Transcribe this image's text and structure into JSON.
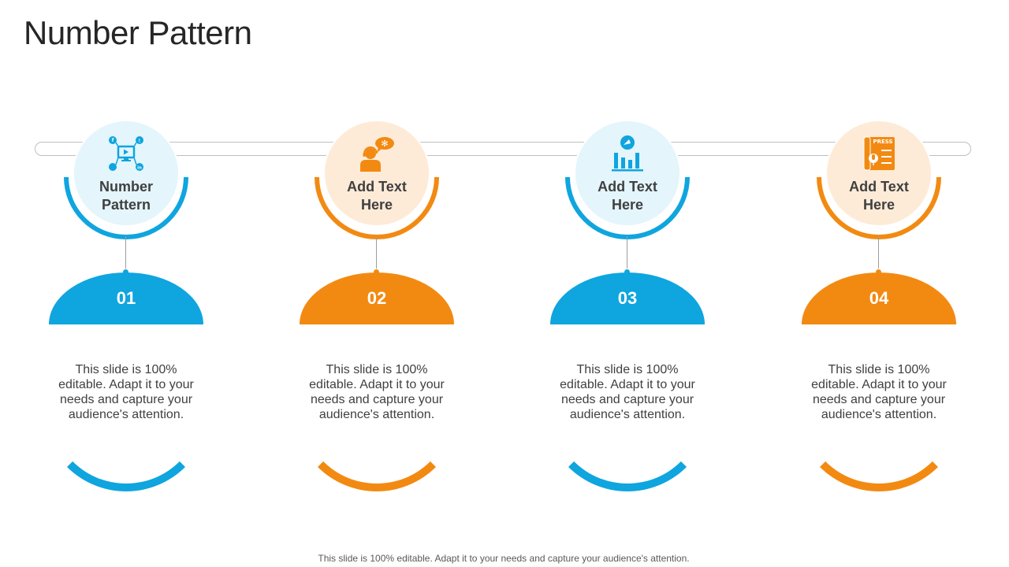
{
  "title": "Number Pattern",
  "colors": {
    "blue": "#0fa5df",
    "orange": "#f28a12",
    "blue_light": "#e4f5fc",
    "orange_light": "#fdebd8"
  },
  "steps": [
    {
      "label": "Number Pattern",
      "number": "01",
      "description": "This slide is 100% editable. Adapt it to your needs and capture your audience's attention.",
      "icon": "social-network-icon",
      "color": "blue"
    },
    {
      "label": "Add Text Here",
      "number": "02",
      "description": "This slide is 100% editable. Adapt it to your needs and capture your audience's attention.",
      "icon": "customer-support-icon",
      "color": "orange"
    },
    {
      "label": "Add Text Here",
      "number": "03",
      "description": "This slide is 100% editable. Adapt it to your needs and capture your audience's attention.",
      "icon": "growth-chart-icon",
      "color": "blue"
    },
    {
      "label": "Add Text Here",
      "number": "04",
      "description": "This slide is 100% editable. Adapt it to your needs and capture your audience's attention.",
      "icon": "press-release-icon",
      "color": "orange"
    }
  ],
  "footer": "This slide is 100% editable. Adapt it to your needs and capture your audience's attention."
}
